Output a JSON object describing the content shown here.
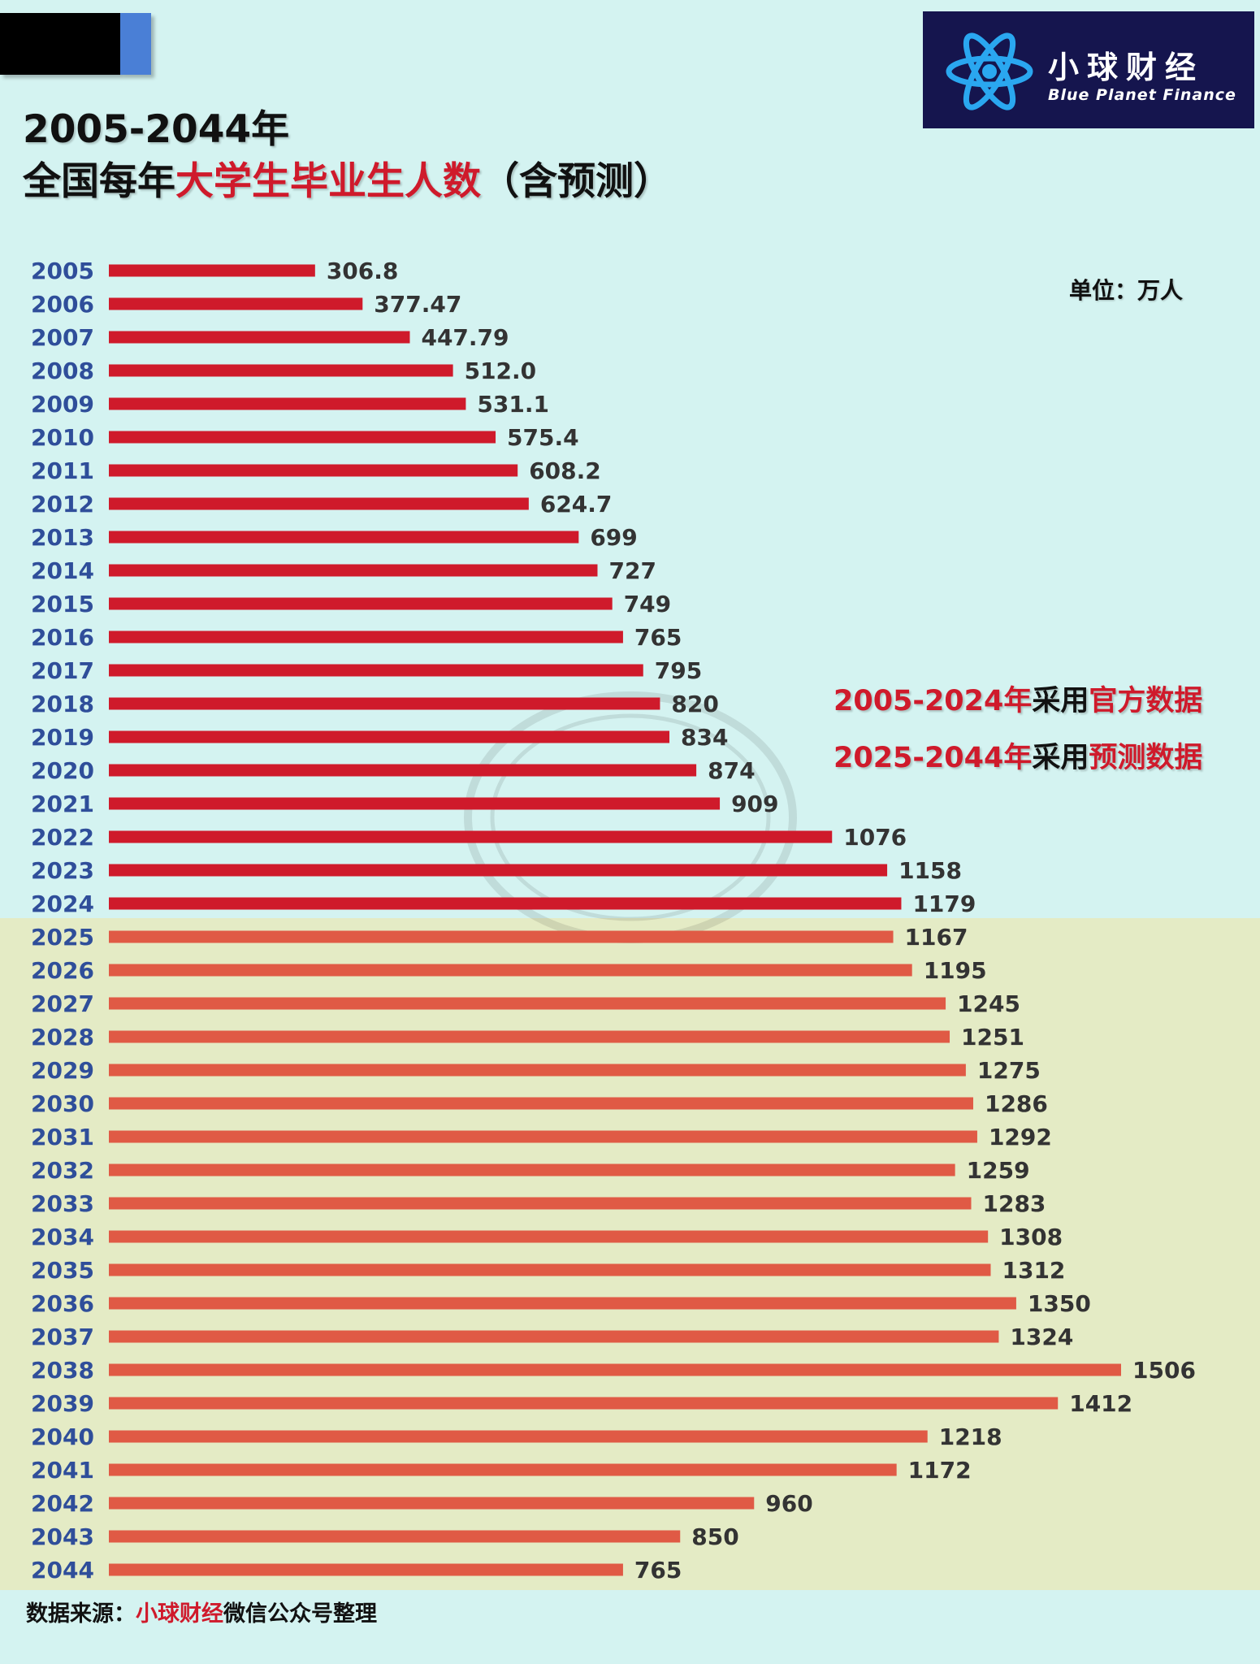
{
  "title": {
    "line1": "2005-2044年",
    "line2_prefix": "全国每年",
    "line2_highlight": "大学生毕业生人数",
    "line2_suffix": "（含预测）"
  },
  "logo": {
    "cn": "小球财经",
    "en": "Blue Planet Finance"
  },
  "unit": "单位：万人",
  "notes": [
    {
      "range": "2005-2024年",
      "mid": "采用",
      "tail": "官方数据"
    },
    {
      "range": "2025-2044年",
      "mid": "采用",
      "tail": "预测数据"
    }
  ],
  "source": {
    "prefix": "数据来源：",
    "highlight": "小球财经",
    "suffix": "微信公众号整理"
  },
  "colors": {
    "official": "#cf1a2b",
    "forecast": "#e05a45",
    "year_label": "#2f4e9a",
    "bg_official": "#d4f3f1",
    "bg_forecast": "#e4ebc5"
  },
  "chart_data": {
    "type": "bar",
    "orientation": "horizontal",
    "categories": [
      "2005",
      "2006",
      "2007",
      "2008",
      "2009",
      "2010",
      "2011",
      "2012",
      "2013",
      "2014",
      "2015",
      "2016",
      "2017",
      "2018",
      "2019",
      "2020",
      "2021",
      "2022",
      "2023",
      "2024",
      "2025",
      "2026",
      "2027",
      "2028",
      "2029",
      "2030",
      "2031",
      "2032",
      "2033",
      "2034",
      "2035",
      "2036",
      "2037",
      "2038",
      "2039",
      "2040",
      "2041",
      "2042",
      "2043",
      "2044"
    ],
    "values": [
      306.8,
      377.47,
      447.79,
      512.0,
      531.1,
      575.4,
      608.2,
      624.7,
      699,
      727,
      749,
      765,
      795,
      820,
      834,
      874,
      909,
      1076,
      1158,
      1179,
      1167,
      1195,
      1245,
      1251,
      1275,
      1286,
      1292,
      1259,
      1283,
      1308,
      1312,
      1350,
      1324,
      1506,
      1412,
      1218,
      1172,
      960,
      850,
      765
    ],
    "value_labels": [
      "306.8",
      "377.47",
      "447.79",
      "512.0",
      "531.1",
      "575.4",
      "608.2",
      "624.7",
      "699",
      "727",
      "749",
      "765",
      "795",
      "820",
      "834",
      "874",
      "909",
      "1076",
      "1158",
      "1179",
      "1167",
      "1195",
      "1245",
      "1251",
      "1275",
      "1286",
      "1292",
      "1259",
      "1283",
      "1308",
      "1312",
      "1350",
      "1324",
      "1506",
      "1412",
      "1218",
      "1172",
      "960",
      "850",
      "765"
    ],
    "official_count": 20,
    "grid": false,
    "legend": "none"
  }
}
